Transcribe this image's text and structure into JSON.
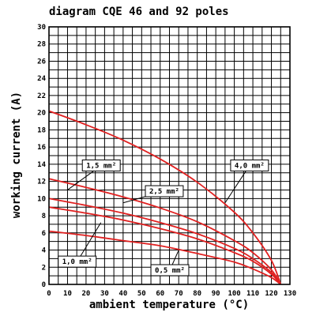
{
  "chart_data": {
    "type": "line",
    "title": "diagram CQE 46 and 92 poles",
    "xlabel": "ambient temperature (°C)",
    "ylabel": "working current (A)",
    "xlim": [
      0,
      130
    ],
    "ylim": [
      0,
      30
    ],
    "x_ticks": [
      0,
      10,
      20,
      30,
      40,
      50,
      60,
      70,
      80,
      90,
      100,
      110,
      120,
      130
    ],
    "y_ticks": [
      0,
      2,
      4,
      6,
      8,
      10,
      12,
      14,
      16,
      18,
      20,
      22,
      24,
      26,
      28,
      30
    ],
    "grid": true,
    "curve_color": "#e02020",
    "series": [
      {
        "name": "4,0 mm²",
        "x": [
          0,
          20,
          40,
          60,
          80,
          100,
          110,
          120,
          125
        ],
        "y": [
          20.2,
          18.6,
          16.8,
          14.6,
          11.9,
          8.4,
          6.0,
          2.8,
          0
        ]
      },
      {
        "name": "2,5 mm²",
        "x": [
          0,
          20,
          40,
          60,
          80,
          100,
          110,
          120,
          125
        ],
        "y": [
          12.3,
          11.3,
          10.2,
          8.9,
          7.3,
          5.1,
          3.7,
          1.7,
          0
        ]
      },
      {
        "name": "1,5 mm²",
        "x": [
          0,
          20,
          40,
          60,
          80,
          100,
          110,
          120,
          125
        ],
        "y": [
          10.0,
          9.2,
          8.3,
          7.2,
          5.9,
          4.2,
          3.0,
          1.4,
          0
        ]
      },
      {
        "name": "1,0 mm²",
        "x": [
          0,
          20,
          40,
          60,
          80,
          100,
          110,
          120,
          125
        ],
        "y": [
          9.0,
          8.3,
          7.5,
          6.5,
          5.3,
          3.7,
          2.7,
          1.2,
          0
        ]
      },
      {
        "name": "0,5 mm²",
        "x": [
          0,
          20,
          40,
          60,
          80,
          100,
          110,
          120,
          125
        ],
        "y": [
          6.2,
          5.7,
          5.1,
          4.5,
          3.6,
          2.6,
          1.8,
          0.8,
          0
        ]
      }
    ],
    "annotations": [
      {
        "text": "1,5 mm²",
        "series": "1,5 mm²",
        "box_x": 18,
        "box_y": 14.5,
        "point_x": 10,
        "point_y": 11.0
      },
      {
        "text": "2,5 mm²",
        "series": "2,5 mm²",
        "box_x": 52,
        "box_y": 11.5,
        "point_x": 40,
        "point_y": 9.5
      },
      {
        "text": "4,0 mm²",
        "series": "4,0 mm²",
        "box_x": 98,
        "box_y": 14.5,
        "point_x": 95,
        "point_y": 9.5
      },
      {
        "text": "1,0 mm²",
        "series": "1,0 mm²",
        "box_x": 5,
        "box_y": 3.3,
        "point_x": 28,
        "point_y": 7.2
      },
      {
        "text": "0,5 mm²",
        "series": "0,5 mm²",
        "box_x": 55,
        "box_y": 2.3,
        "point_x": 70,
        "point_y": 4.0
      }
    ]
  }
}
